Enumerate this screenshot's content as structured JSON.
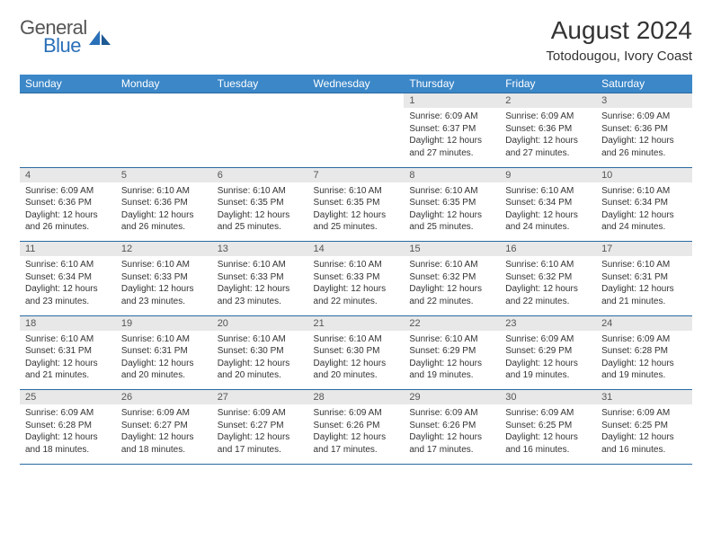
{
  "logo": {
    "line1": "General",
    "line2": "Blue"
  },
  "title": "August 2024",
  "location": "Totodougou, Ivory Coast",
  "colors": {
    "header_blue": "#3b87c8",
    "border_blue": "#2a6aa0",
    "daynum_bg": "#e8e8e8",
    "logo_gray": "#555555",
    "logo_blue": "#2a70b8",
    "text": "#333333"
  },
  "weekdays": [
    "Sunday",
    "Monday",
    "Tuesday",
    "Wednesday",
    "Thursday",
    "Friday",
    "Saturday"
  ],
  "weeks": [
    {
      "nums": [
        "",
        "",
        "",
        "",
        "1",
        "2",
        "3"
      ],
      "cells": [
        null,
        null,
        null,
        null,
        {
          "sr": "6:09 AM",
          "ss": "6:37 PM",
          "dl": "12 hours and 27 minutes."
        },
        {
          "sr": "6:09 AM",
          "ss": "6:36 PM",
          "dl": "12 hours and 27 minutes."
        },
        {
          "sr": "6:09 AM",
          "ss": "6:36 PM",
          "dl": "12 hours and 26 minutes."
        }
      ]
    },
    {
      "nums": [
        "4",
        "5",
        "6",
        "7",
        "8",
        "9",
        "10"
      ],
      "cells": [
        {
          "sr": "6:09 AM",
          "ss": "6:36 PM",
          "dl": "12 hours and 26 minutes."
        },
        {
          "sr": "6:10 AM",
          "ss": "6:36 PM",
          "dl": "12 hours and 26 minutes."
        },
        {
          "sr": "6:10 AM",
          "ss": "6:35 PM",
          "dl": "12 hours and 25 minutes."
        },
        {
          "sr": "6:10 AM",
          "ss": "6:35 PM",
          "dl": "12 hours and 25 minutes."
        },
        {
          "sr": "6:10 AM",
          "ss": "6:35 PM",
          "dl": "12 hours and 25 minutes."
        },
        {
          "sr": "6:10 AM",
          "ss": "6:34 PM",
          "dl": "12 hours and 24 minutes."
        },
        {
          "sr": "6:10 AM",
          "ss": "6:34 PM",
          "dl": "12 hours and 24 minutes."
        }
      ]
    },
    {
      "nums": [
        "11",
        "12",
        "13",
        "14",
        "15",
        "16",
        "17"
      ],
      "cells": [
        {
          "sr": "6:10 AM",
          "ss": "6:34 PM",
          "dl": "12 hours and 23 minutes."
        },
        {
          "sr": "6:10 AM",
          "ss": "6:33 PM",
          "dl": "12 hours and 23 minutes."
        },
        {
          "sr": "6:10 AM",
          "ss": "6:33 PM",
          "dl": "12 hours and 23 minutes."
        },
        {
          "sr": "6:10 AM",
          "ss": "6:33 PM",
          "dl": "12 hours and 22 minutes."
        },
        {
          "sr": "6:10 AM",
          "ss": "6:32 PM",
          "dl": "12 hours and 22 minutes."
        },
        {
          "sr": "6:10 AM",
          "ss": "6:32 PM",
          "dl": "12 hours and 22 minutes."
        },
        {
          "sr": "6:10 AM",
          "ss": "6:31 PM",
          "dl": "12 hours and 21 minutes."
        }
      ]
    },
    {
      "nums": [
        "18",
        "19",
        "20",
        "21",
        "22",
        "23",
        "24"
      ],
      "cells": [
        {
          "sr": "6:10 AM",
          "ss": "6:31 PM",
          "dl": "12 hours and 21 minutes."
        },
        {
          "sr": "6:10 AM",
          "ss": "6:31 PM",
          "dl": "12 hours and 20 minutes."
        },
        {
          "sr": "6:10 AM",
          "ss": "6:30 PM",
          "dl": "12 hours and 20 minutes."
        },
        {
          "sr": "6:10 AM",
          "ss": "6:30 PM",
          "dl": "12 hours and 20 minutes."
        },
        {
          "sr": "6:10 AM",
          "ss": "6:29 PM",
          "dl": "12 hours and 19 minutes."
        },
        {
          "sr": "6:09 AM",
          "ss": "6:29 PM",
          "dl": "12 hours and 19 minutes."
        },
        {
          "sr": "6:09 AM",
          "ss": "6:28 PM",
          "dl": "12 hours and 19 minutes."
        }
      ]
    },
    {
      "nums": [
        "25",
        "26",
        "27",
        "28",
        "29",
        "30",
        "31"
      ],
      "cells": [
        {
          "sr": "6:09 AM",
          "ss": "6:28 PM",
          "dl": "12 hours and 18 minutes."
        },
        {
          "sr": "6:09 AM",
          "ss": "6:27 PM",
          "dl": "12 hours and 18 minutes."
        },
        {
          "sr": "6:09 AM",
          "ss": "6:27 PM",
          "dl": "12 hours and 17 minutes."
        },
        {
          "sr": "6:09 AM",
          "ss": "6:26 PM",
          "dl": "12 hours and 17 minutes."
        },
        {
          "sr": "6:09 AM",
          "ss": "6:26 PM",
          "dl": "12 hours and 17 minutes."
        },
        {
          "sr": "6:09 AM",
          "ss": "6:25 PM",
          "dl": "12 hours and 16 minutes."
        },
        {
          "sr": "6:09 AM",
          "ss": "6:25 PM",
          "dl": "12 hours and 16 minutes."
        }
      ]
    }
  ],
  "labels": {
    "sunrise": "Sunrise:",
    "sunset": "Sunset:",
    "daylight": "Daylight:"
  }
}
